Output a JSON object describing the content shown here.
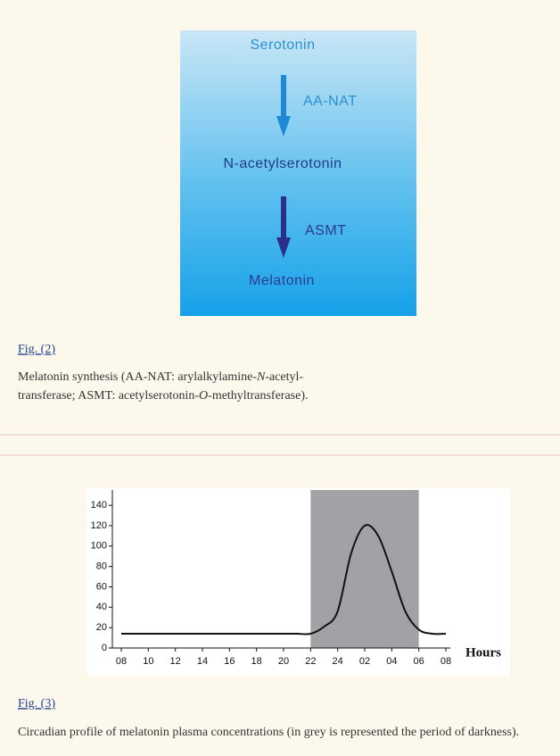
{
  "figure2": {
    "diagram": {
      "nodes": [
        "Serotonin",
        "N-acetylserotonin",
        "Melatonin"
      ],
      "enzymes": [
        "AA-NAT",
        "ASMT"
      ]
    },
    "label": "Fig. (2)",
    "caption": [
      "Melatonin synthesis (AA-NAT: arylalkylamine-",
      "N",
      "-acetyl-",
      "transferase; ASMT: acetylserotonin-",
      "O",
      "-methyltransferase)."
    ]
  },
  "chart_data": {
    "type": "line",
    "categories": [
      "08",
      null,
      "10",
      null,
      "12",
      null,
      "14",
      null,
      "16",
      null,
      "18",
      null,
      "20",
      null,
      "22",
      null,
      "24",
      null,
      "02",
      null,
      "04",
      null,
      "06",
      null,
      "08"
    ],
    "values": [
      14,
      14,
      14,
      14,
      14,
      14,
      14,
      14,
      14,
      14,
      14,
      14,
      14,
      14,
      14,
      21,
      36,
      93,
      120,
      110,
      75,
      36,
      18,
      14,
      14
    ],
    "color": "#111111",
    "ylim": [
      0,
      155
    ],
    "yticks": [
      0,
      20,
      40,
      60,
      80,
      100,
      120,
      140
    ],
    "xlabel": "Hours",
    "shade_from": 14,
    "shade_to": 22,
    "shade_color": "#a2a2a6"
  },
  "figure3": {
    "label": "Fig. (3)",
    "caption": "Circadian profile of melatonin plasma concentrations (in grey is represented the period of darkness)."
  }
}
